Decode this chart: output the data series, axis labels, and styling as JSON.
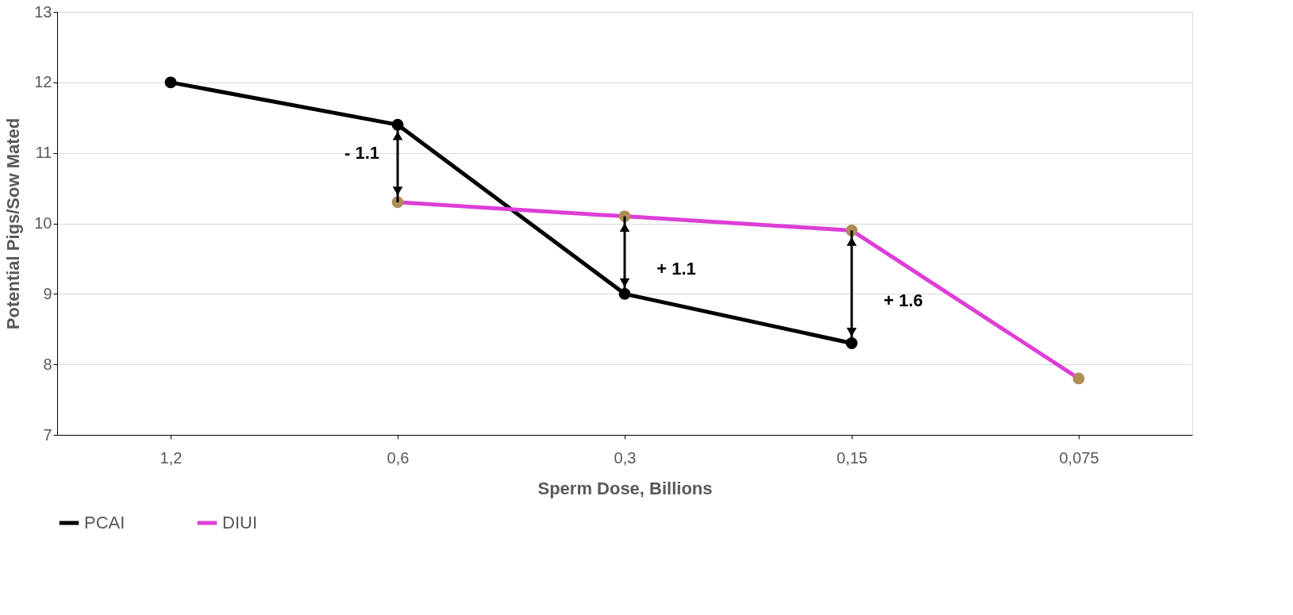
{
  "chart_data": {
    "type": "line",
    "xlabel": "Sperm Dose, Billions",
    "ylabel": "Potential Pigs/Sow Mated",
    "categories": [
      "1,2",
      "0,6",
      "0,3",
      "0,15",
      "0,075"
    ],
    "series": [
      {
        "name": "PCAI",
        "color": "#000000",
        "colors": [
          "#000000",
          "#000000",
          "#000000",
          "#000000",
          "#000000"
        ],
        "values": [
          12,
          11.4,
          9.0,
          8.3,
          null
        ]
      },
      {
        "name": "DIUI",
        "color": "#dd3ed6",
        "colors": [
          "#b08d57",
          "#b08d57",
          "#b08d57",
          "#b08d57",
          "#b08d57"
        ],
        "values": [
          null,
          10.3,
          10.1,
          9.9,
          7.8
        ]
      }
    ],
    "annotations": [
      "- 1.1",
      "+ 1.1",
      "+ 1.6"
    ],
    "ylim": [
      7,
      13
    ],
    "yticks": [
      7,
      8,
      9,
      10,
      11,
      12,
      13
    ],
    "grid": "y",
    "legend": "bottom",
    "marker": "circle",
    "line_style": "solid"
  }
}
